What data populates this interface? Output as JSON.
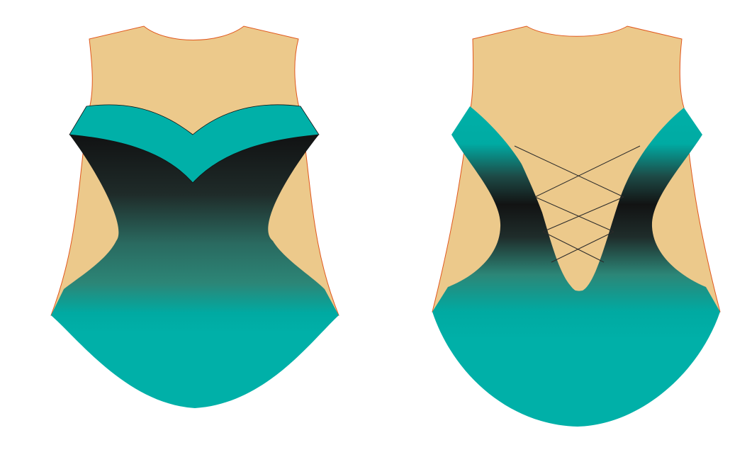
{
  "views": [
    {
      "view": "front"
    },
    {
      "view": "back"
    }
  ],
  "colors": {
    "skin": "#ECC98B",
    "skin_outline": "#E0571E",
    "teal": "#00B0A8",
    "teal_mid": "#2C8677",
    "black": "#141414",
    "lace": "#2A2A2A",
    "background": "#FFFFFF"
  }
}
